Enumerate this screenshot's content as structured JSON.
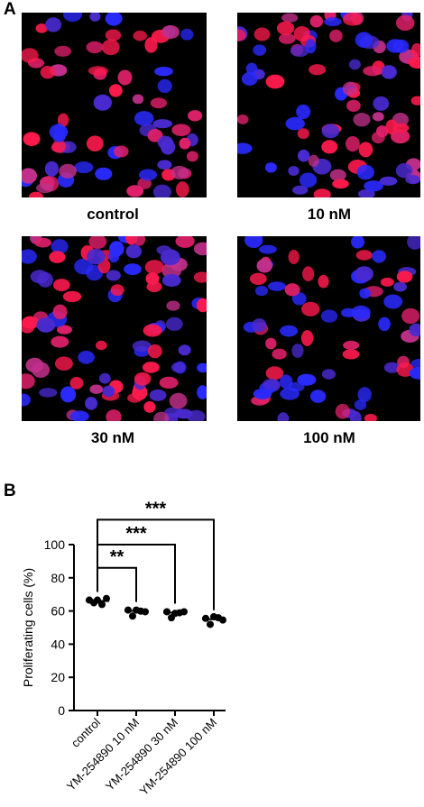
{
  "panel_a": {
    "letter": "A",
    "images": [
      {
        "label": "control"
      },
      {
        "label": "10 nM"
      },
      {
        "label": "30 nM"
      },
      {
        "label": "100 nM"
      }
    ]
  },
  "panel_b": {
    "letter": "B",
    "significance": [
      "**",
      "***",
      "***"
    ]
  },
  "chart_data": {
    "type": "scatter",
    "categories": [
      "control",
      "YM-254890 10 nM",
      "YM-254890 30 nM",
      "YM-254890 100 nM"
    ],
    "ylabel": "Proliferating cells (%)",
    "xlabel": "",
    "ylim": [
      0,
      100
    ],
    "yticks": [
      0,
      20,
      40,
      60,
      80,
      100
    ],
    "series": [
      {
        "values": [
          [
            66,
            66,
            66,
            65,
            67
          ],
          [
            60,
            58,
            60,
            61,
            59
          ],
          [
            59,
            57,
            58,
            60,
            59
          ],
          [
            55,
            53,
            56,
            57,
            54
          ]
        ]
      }
    ],
    "means": [
      66,
      60,
      59,
      55
    ],
    "comparisons": [
      {
        "from": "control",
        "to": "YM-254890 10 nM",
        "label": "**"
      },
      {
        "from": "control",
        "to": "YM-254890 30 nM",
        "label": "***"
      },
      {
        "from": "control",
        "to": "YM-254890 100 nM",
        "label": "***"
      }
    ],
    "marker_color": "#000000"
  }
}
